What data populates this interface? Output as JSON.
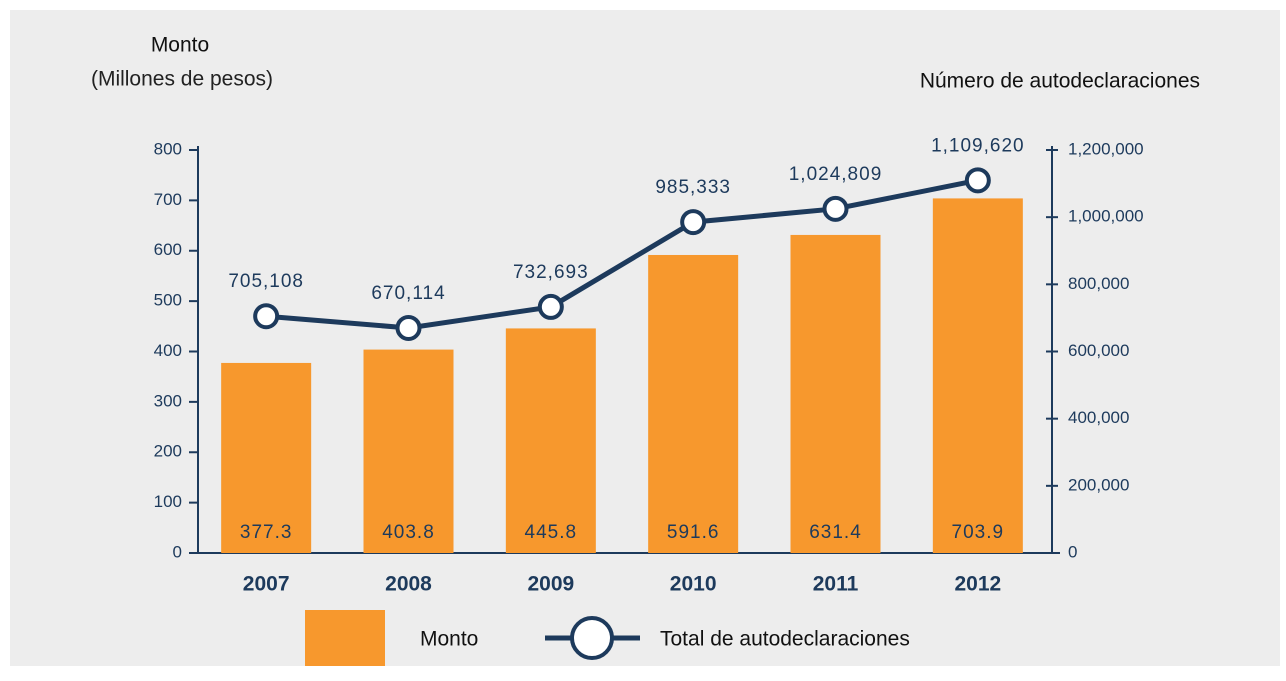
{
  "chart_data": {
    "type": "bar",
    "y_title": "Monto",
    "y_subtitle": "(Millones de pesos)",
    "y2_title": "Número de autodeclaraciones",
    "categories": [
      "2007",
      "2008",
      "2009",
      "2010",
      "2011",
      "2012"
    ],
    "series": [
      {
        "name": "Monto",
        "type": "bar",
        "color": "#f7982d",
        "values": [
          377.3,
          403.8,
          445.8,
          591.6,
          631.4,
          703.9
        ]
      },
      {
        "name": "Total de autodeclaraciones",
        "type": "line",
        "axis": "y2",
        "color": "#1d3a5c",
        "values": [
          705108,
          670114,
          732693,
          985333,
          1024809,
          1109620
        ],
        "value_labels": [
          "705,108",
          "670,114",
          "732,693",
          "985,333",
          "1,024,809",
          "1,109,620"
        ]
      }
    ],
    "ylim": [
      0,
      800
    ],
    "yticks": [
      0,
      100,
      200,
      300,
      400,
      500,
      600,
      700,
      800
    ],
    "y2lim": [
      0,
      1200000
    ],
    "y2ticks": [
      0,
      {
        "value": 200000,
        "label": "200,000"
      },
      {
        "value": 400000,
        "label": "400,000"
      },
      {
        "value": 600000,
        "label": "600,000"
      },
      {
        "value": 800000,
        "label": "800,000"
      },
      {
        "value": 1000000,
        "label": "1,000,000"
      },
      {
        "value": 1200000,
        "label": "1,200,000"
      }
    ],
    "legend": "bottom"
  }
}
